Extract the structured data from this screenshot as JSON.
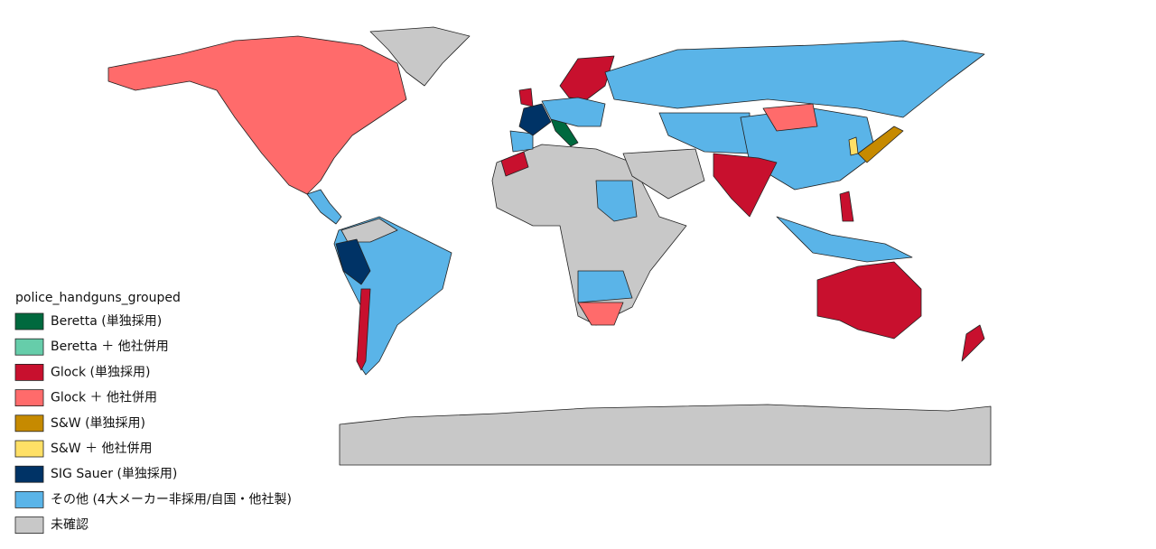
{
  "legend": {
    "title": "police_handguns_grouped",
    "items": [
      {
        "label": "Beretta (単独採用)",
        "color": "#00693e"
      },
      {
        "label": "Beretta ＋ 他社併用",
        "color": "#66cdaa"
      },
      {
        "label": "Glock (単独採用)",
        "color": "#c8102e"
      },
      {
        "label": "Glock ＋ 他社併用",
        "color": "#ff6b6b"
      },
      {
        "label": "S&W (単独採用)",
        "color": "#c68a00"
      },
      {
        "label": "S&W ＋ 他社併用",
        "color": "#ffe066"
      },
      {
        "label": "SIG Sauer (単独採用)",
        "color": "#003366"
      },
      {
        "label": "その他 (4大メーカー非採用/自国・他社製)",
        "color": "#5ab4e8"
      },
      {
        "label": "未確認",
        "color": "#c8c8c8"
      }
    ]
  }
}
